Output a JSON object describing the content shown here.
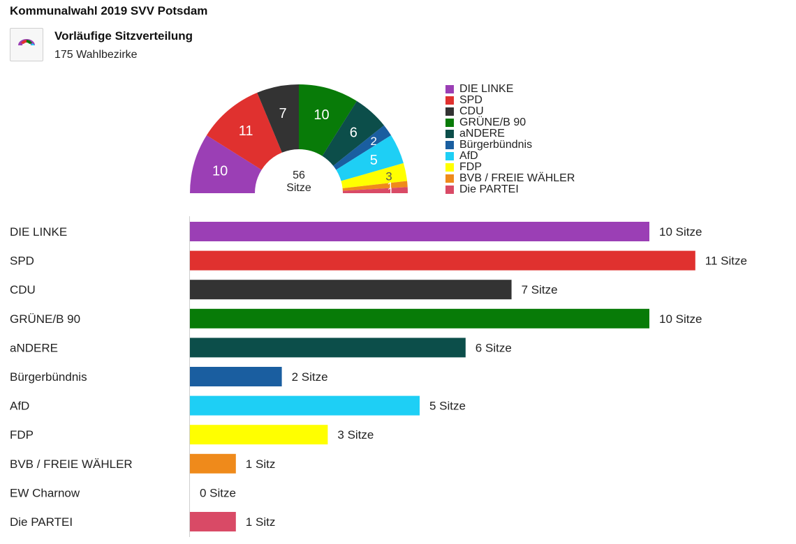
{
  "header": {
    "title": "Kommunalwahl 2019 SVV Potsdam",
    "subtitle": "Vorläufige Sitzverteilung",
    "subline": "175 Wahlbezirke",
    "icon": "parliament-hemicycle-icon"
  },
  "chart_data": [
    {
      "type": "pie",
      "variant": "parliament-hemicycle",
      "center_label": [
        "56",
        "Sitze"
      ],
      "categories": [
        "DIE LINKE",
        "SPD",
        "CDU",
        "GRÜNE/B 90",
        "aNDERE",
        "Bürgerbündnis",
        "AfD",
        "FDP",
        "BVB / FREIE WÄHLER",
        "Die PARTEI"
      ],
      "values": [
        10,
        11,
        7,
        10,
        6,
        2,
        5,
        3,
        1,
        1
      ],
      "colors": [
        "#9b3fb5",
        "#e0312f",
        "#333333",
        "#087b08",
        "#0c4e4a",
        "#1a5ea0",
        "#1ecff5",
        "#ffff00",
        "#ef8a1b",
        "#d94a66"
      ],
      "legend": "right",
      "title": ""
    },
    {
      "type": "bar",
      "orientation": "horizontal",
      "categories": [
        "DIE LINKE",
        "SPD",
        "CDU",
        "GRÜNE/B 90",
        "aNDERE",
        "Bürgerbündnis",
        "AfD",
        "FDP",
        "BVB / FREIE WÄHLER",
        "EW Charnow",
        "Die PARTEI"
      ],
      "values": [
        10,
        11,
        7,
        10,
        6,
        2,
        5,
        3,
        1,
        0,
        1
      ],
      "labels": [
        "10 Sitze",
        "11 Sitze",
        "7 Sitze",
        "10 Sitze",
        "6 Sitze",
        "2 Sitze",
        "5 Sitze",
        "3 Sitze",
        "1 Sitz",
        "0 Sitze",
        "1 Sitz"
      ],
      "colors": [
        "#9b3fb5",
        "#e0312f",
        "#333333",
        "#087b08",
        "#0c4e4a",
        "#1a5ea0",
        "#1ecff5",
        "#ffff00",
        "#ef8a1b",
        "#cccccc",
        "#d94a66"
      ],
      "xlim": [
        0,
        11
      ],
      "title": ""
    }
  ]
}
